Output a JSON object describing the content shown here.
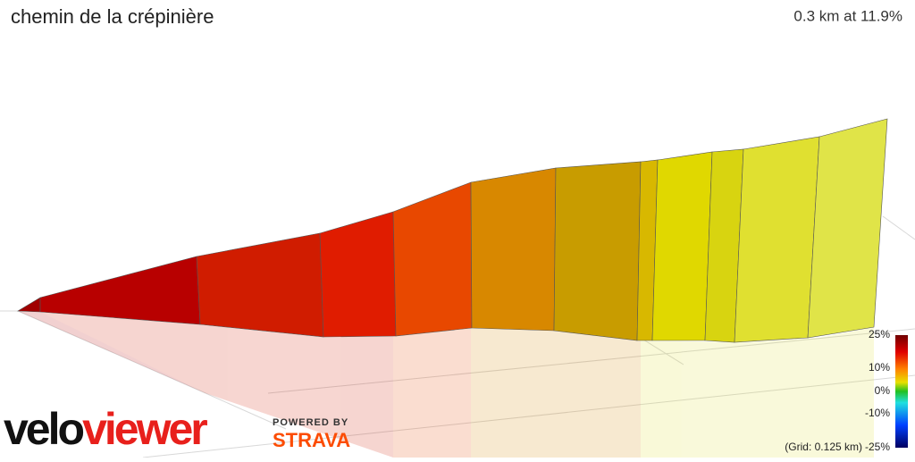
{
  "header": {
    "title": "chemin de la crépinière",
    "stats": "0.3 km at 11.9%"
  },
  "legend": {
    "labels": [
      "25%",
      "10%",
      "0%",
      "-10%",
      "-25%"
    ]
  },
  "grid_note": "(Grid: 0.125 km)",
  "branding": {
    "logo_parts": [
      "velo",
      "viewer"
    ],
    "powered_by": "POWERED BY",
    "partner": "STRAVA"
  }
}
